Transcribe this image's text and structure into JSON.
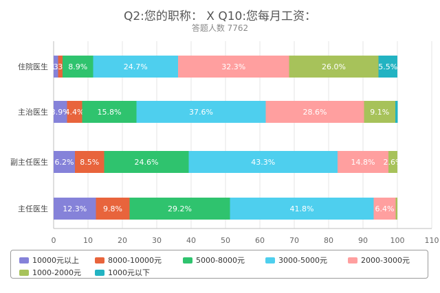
{
  "chart_data": {
    "type": "bar",
    "orientation": "horizontal",
    "stacked": true,
    "title": "Q2:您的职称： X Q10:您每月工资：",
    "subtitle": "答题人数 7762",
    "xlabel": "",
    "ylabel": "",
    "xlim": [
      0,
      110
    ],
    "xticks": [
      0,
      10,
      20,
      30,
      40,
      50,
      60,
      70,
      80,
      90,
      100,
      110
    ],
    "grid": "vertical",
    "legend_position": "bottom",
    "categories": [
      "住院医生",
      "主治医生",
      "副主任医生",
      "主任医生"
    ],
    "series": [
      {
        "name": "10000元以上",
        "color": "#8582d9",
        "values": [
          1.3,
          3.9,
          6.2,
          12.3
        ],
        "labels": [
          "1.3%",
          "3.9%",
          "6.2%",
          "12.3%"
        ]
      },
      {
        "name": "8000-10000元",
        "color": "#e8643c",
        "values": [
          1.3,
          4.4,
          8.5,
          9.8
        ],
        "labels": [
          "1.3%",
          "4.4%",
          "8.5%",
          "9.8%"
        ]
      },
      {
        "name": "5000-8000元",
        "color": "#2fc36e",
        "values": [
          8.9,
          15.8,
          24.6,
          29.2
        ],
        "labels": [
          "8.9%",
          "15.8%",
          "24.6%",
          "29.2%"
        ]
      },
      {
        "name": "3000-5000元",
        "color": "#4ecfee",
        "values": [
          24.7,
          37.6,
          43.3,
          41.8
        ],
        "labels": [
          "24.7%",
          "37.6%",
          "43.3%",
          "41.8%"
        ]
      },
      {
        "name": "2000-3000元",
        "color": "#ff9f9f",
        "values": [
          32.3,
          28.6,
          14.8,
          6.4
        ],
        "labels": [
          "32.3%",
          "28.6%",
          "14.8%",
          "6.4%"
        ]
      },
      {
        "name": "1000-2000元",
        "color": "#a7c25a",
        "values": [
          26.0,
          9.1,
          2.6,
          0.5
        ],
        "labels": [
          "26.0%",
          "9.1%",
          "2.6%",
          ""
        ]
      },
      {
        "name": "1000元以下",
        "color": "#22b3c2",
        "values": [
          5.5,
          0.7,
          0.0,
          0.0
        ],
        "labels": [
          "5.5%",
          "",
          "",
          ""
        ]
      }
    ]
  }
}
